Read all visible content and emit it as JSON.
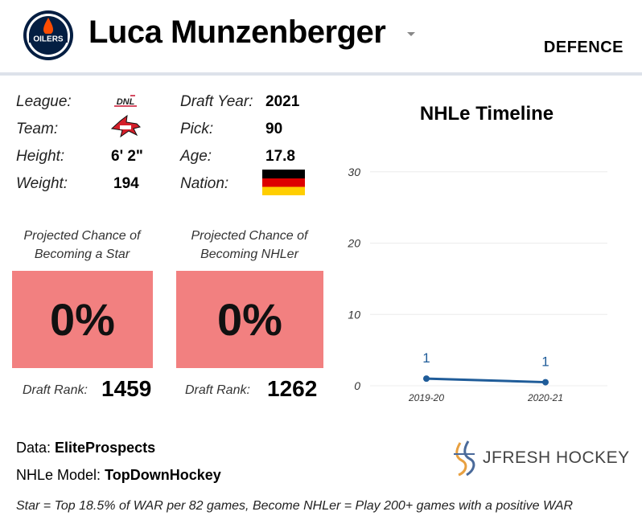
{
  "header": {
    "team_logo_text": "OILERS",
    "player_name": "Luca Munzenberger",
    "position": "DEFENCE"
  },
  "info": {
    "league_label": "League:",
    "league_logo_text": "DNL",
    "team_label": "Team:",
    "height_label": "Height:",
    "height_value": "6' 2\"",
    "weight_label": "Weight:",
    "weight_value": "194",
    "draft_year_label": "Draft Year:",
    "draft_year_value": "2021",
    "pick_label": "Pick:",
    "pick_value": "90",
    "age_label": "Age:",
    "age_value": "17.8",
    "nation_label": "Nation:",
    "nation_flag": "germany-flag"
  },
  "projections": {
    "star": {
      "label_line1": "Projected Chance of",
      "label_line2": "Becoming a Star",
      "value": "0%",
      "rank_label": "Draft Rank:",
      "rank_value": "1459"
    },
    "nhler": {
      "label_line1": "Projected Chance of",
      "label_line2": "Becoming NHLer",
      "value": "0%",
      "rank_label": "Draft Rank:",
      "rank_value": "1262"
    },
    "box_color": "#f28080"
  },
  "chart_data": {
    "type": "line",
    "title": "NHLe Timeline",
    "categories": [
      "2019-20",
      "2020-21"
    ],
    "series": [
      {
        "values": [
          1,
          0.5
        ],
        "data_labels": [
          "1",
          "1"
        ],
        "color": "#1f5c99"
      }
    ],
    "yticks": [
      "0",
      "10",
      "20",
      "30"
    ],
    "ylim": [
      0,
      32
    ],
    "grid": true
  },
  "footer": {
    "data_label": "Data:",
    "data_value": "EliteProspects",
    "model_label": "NHLe Model:",
    "model_value": "TopDownHockey",
    "footnote": "Star = Top 18.5% of WAR per 82 games, Become NHLer = Play 200+ games with a positive WAR",
    "brand": "JFRESH HOCKEY"
  }
}
